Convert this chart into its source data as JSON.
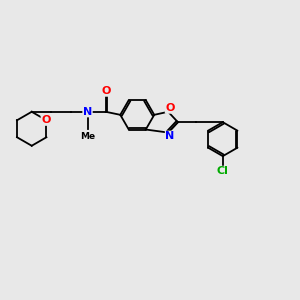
{
  "background_color": "#e8e8e8",
  "bond_color": "#000000",
  "atom_colors": {
    "O": "#ff0000",
    "N": "#0000ff",
    "Cl": "#00aa00",
    "C": "#000000"
  },
  "figsize": [
    3.0,
    3.0
  ],
  "dpi": 100
}
